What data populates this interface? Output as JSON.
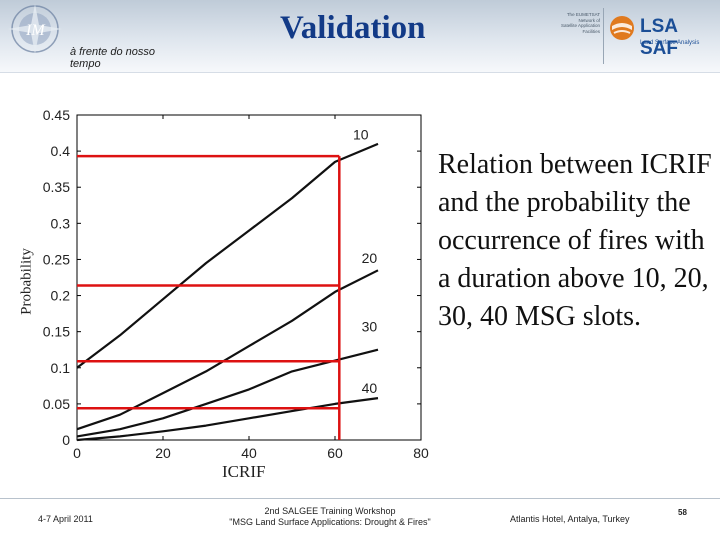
{
  "header": {
    "title": "Validation",
    "subtitle": "à frente do nosso tempo",
    "partner_text": [
      "The EUMETSAT",
      "Network of",
      "Satellite Application",
      "Facilities"
    ],
    "lsa_name": "LSA SAF",
    "lsa_tagline": "Land Surface Analysis"
  },
  "colors": {
    "title": "#123a87",
    "guide": "#dd1111",
    "curve": "#111111"
  },
  "description": "Relation between ICRIF and the probability the occurrence of fires with a duration above 10, 20, 30, 40 MSG slots.",
  "footer": {
    "date": "4-7 April 2011",
    "event_line1": "2nd SALGEE Training Workshop",
    "event_line2": "\"MSG Land Surface Applications: Drought & Fires\"",
    "venue": "Atlantis Hotel, Antalya, Turkey",
    "page": "58"
  },
  "chart_data": {
    "type": "line",
    "title": "",
    "xlabel": "ICRIF",
    "ylabel": "Probability",
    "xlim": [
      0,
      80
    ],
    "ylim": [
      0,
      0.45
    ],
    "xticks": [
      0,
      20,
      40,
      60,
      80
    ],
    "yticks": [
      0,
      0.05,
      0.1,
      0.15,
      0.2,
      0.25,
      0.3,
      0.35,
      0.4,
      0.45
    ],
    "ytick_labels": [
      "0",
      "0.05",
      "0.1",
      "0.15",
      "0.2",
      "0.25",
      "0.3",
      "0.35",
      "0.4",
      "0.45"
    ],
    "xtick_labels": [
      "0",
      "20",
      "40",
      "60",
      "80"
    ],
    "series": [
      {
        "name": "10",
        "x": [
          0,
          10,
          20,
          30,
          40,
          50,
          60,
          70
        ],
        "y": [
          0.1,
          0.145,
          0.195,
          0.245,
          0.29,
          0.335,
          0.385,
          0.41
        ]
      },
      {
        "name": "20",
        "x": [
          0,
          10,
          20,
          30,
          40,
          50,
          60,
          70
        ],
        "y": [
          0.015,
          0.035,
          0.065,
          0.095,
          0.13,
          0.165,
          0.205,
          0.235
        ]
      },
      {
        "name": "30",
        "x": [
          0,
          10,
          20,
          30,
          40,
          50,
          60,
          70
        ],
        "y": [
          0.005,
          0.015,
          0.03,
          0.05,
          0.07,
          0.095,
          0.11,
          0.125
        ]
      },
      {
        "name": "40",
        "x": [
          0,
          10,
          20,
          30,
          40,
          50,
          60,
          70
        ],
        "y": [
          0.0,
          0.005,
          0.012,
          0.02,
          0.03,
          0.04,
          0.05,
          0.058
        ]
      }
    ],
    "annotations": [
      {
        "label": "10",
        "x": 66,
        "y": 0.423
      },
      {
        "label": "20",
        "x": 68,
        "y": 0.252
      },
      {
        "label": "30",
        "x": 68,
        "y": 0.157
      },
      {
        "label": "40",
        "x": 68,
        "y": 0.072
      }
    ],
    "guides": {
      "vertical_x": 61,
      "horizontal_y": [
        0.393,
        0.214,
        0.109,
        0.044
      ]
    }
  }
}
